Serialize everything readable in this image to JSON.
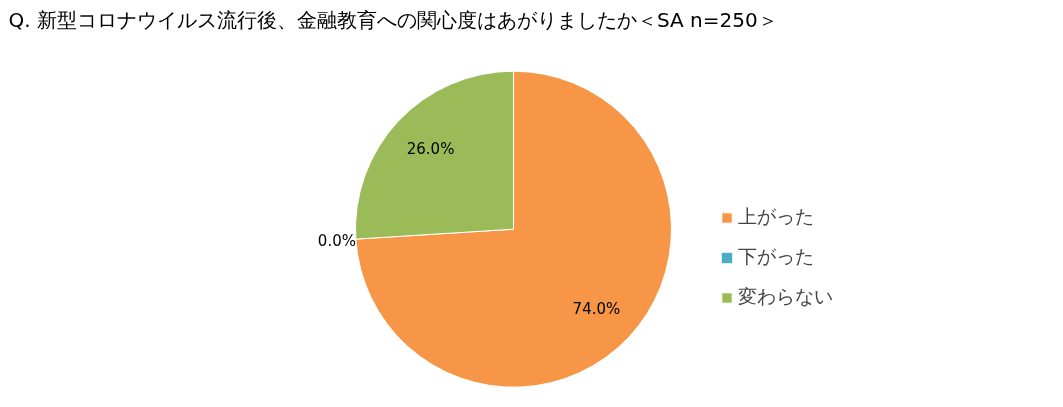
{
  "chart_data": {
    "type": "pie",
    "title": "Q. 新型コロナウイルス流行後、金融教育への関心度はあがりましたか＜SA n=250＞",
    "categories": [
      "上がった",
      "下がった",
      "変わらない"
    ],
    "values": [
      74.0,
      0.0,
      26.0
    ],
    "colors": [
      "#f79646",
      "#4bacc6",
      "#9bbb59"
    ],
    "value_labels": [
      "74.0%",
      "0.0%",
      "26.0%"
    ],
    "legend": "right"
  }
}
